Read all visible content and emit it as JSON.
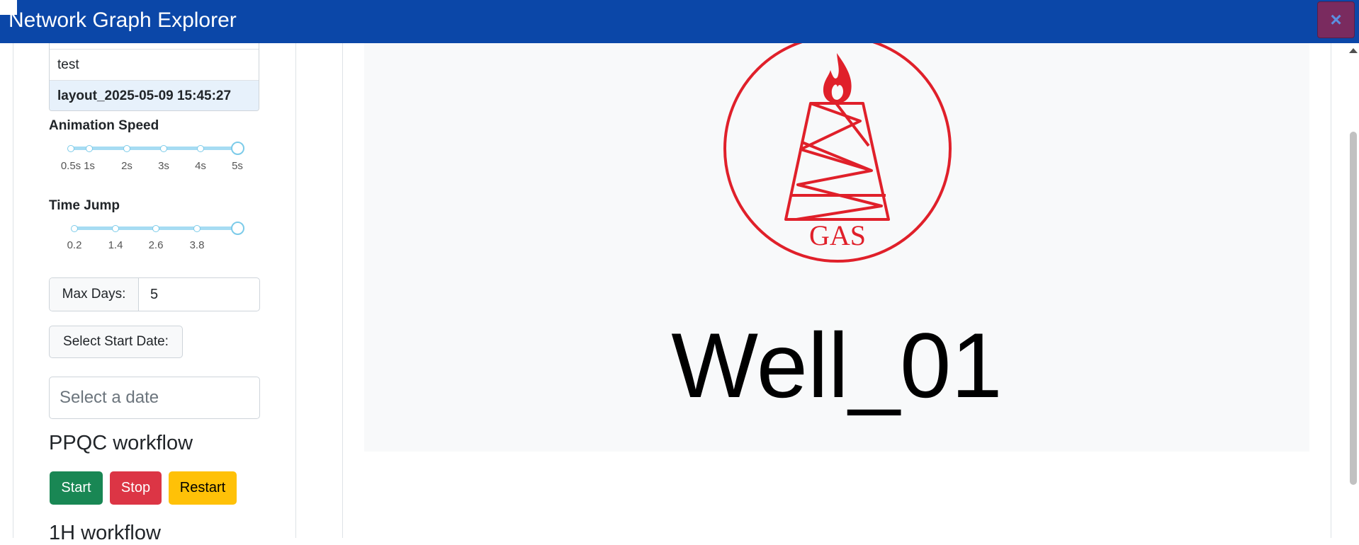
{
  "app": {
    "title": "Network Graph Explorer",
    "close_icon": "×"
  },
  "sidebar": {
    "layouts": [
      {
        "label": "test",
        "selected": false
      },
      {
        "label": "layout_2025-05-09 15:45:27",
        "selected": true
      }
    ],
    "animation_speed": {
      "label": "Animation Speed",
      "ticks": [
        "0.5s",
        "1s",
        "2s",
        "3s",
        "4s",
        "5s"
      ],
      "value": "5s"
    },
    "time_jump": {
      "label": "Time Jump",
      "ticks": [
        "0.2",
        "1.4",
        "2.6",
        "3.8"
      ],
      "value_at_max": true
    },
    "max_days": {
      "label": "Max Days:",
      "value": "5"
    },
    "start_date": {
      "label": "Select Start Date:",
      "placeholder": "Select a date"
    },
    "ppqc": {
      "title": "PPQC workflow",
      "start": "Start",
      "stop": "Stop",
      "restart": "Restart"
    },
    "h1": {
      "title": "1H workflow"
    }
  },
  "main": {
    "logo_text": "GAS",
    "logo_color": "#e0202a",
    "well_name": "Well_01"
  }
}
